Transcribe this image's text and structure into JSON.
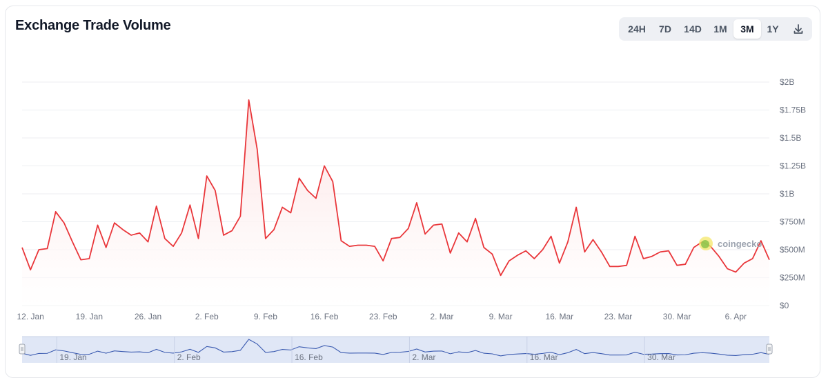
{
  "header": {
    "title": "Exchange Trade Volume"
  },
  "range_buttons": [
    {
      "label": "24H",
      "active": false
    },
    {
      "label": "7D",
      "active": false
    },
    {
      "label": "14D",
      "active": false
    },
    {
      "label": "1M",
      "active": false
    },
    {
      "label": "3M",
      "active": true
    },
    {
      "label": "1Y",
      "active": false
    }
  ],
  "download_icon": "download-icon",
  "watermark": {
    "text": "coingecko",
    "icon": "coingecko-logo-icon"
  },
  "colors": {
    "line": "#e9363a",
    "fill_top": "#fde2e2",
    "navigator_fill": "#d6dff3",
    "navigator_line": "#3b5bb0",
    "grid": "#eceef2"
  },
  "chart_data": {
    "type": "area",
    "series": [
      {
        "values": [
          0.52,
          0.32,
          0.5,
          0.51,
          0.84,
          0.74,
          0.57,
          0.41,
          0.42,
          0.72,
          0.52,
          0.74,
          0.68,
          0.63,
          0.65,
          0.57,
          0.89,
          0.6,
          0.53,
          0.65,
          0.9,
          0.6,
          1.16,
          1.03,
          0.63,
          0.67,
          0.8,
          1.84,
          1.4,
          0.6,
          0.68,
          0.88,
          0.83,
          1.14,
          1.03,
          0.96,
          1.25,
          1.11,
          0.58,
          0.53,
          0.54,
          0.54,
          0.53,
          0.4,
          0.6,
          0.61,
          0.69,
          0.92,
          0.64,
          0.72,
          0.73,
          0.47,
          0.65,
          0.57,
          0.78,
          0.52,
          0.46,
          0.27,
          0.4,
          0.45,
          0.49,
          0.42,
          0.5,
          0.62,
          0.38,
          0.57,
          0.88,
          0.48,
          0.59,
          0.48,
          0.35,
          0.35,
          0.36,
          0.62,
          0.42,
          0.44,
          0.48,
          0.49,
          0.36,
          0.37,
          0.52,
          0.57,
          0.53,
          0.44,
          0.33,
          0.3,
          0.38,
          0.42,
          0.58,
          0.41
        ]
      }
    ],
    "x_start": "2025-01-11",
    "x_ticks": [
      "12. Jan",
      "19. Jan",
      "26. Jan",
      "2. Feb",
      "9. Feb",
      "16. Feb",
      "23. Feb",
      "2. Mar",
      "9. Mar",
      "16. Mar",
      "23. Mar",
      "30. Mar",
      "6. Apr"
    ],
    "y_ticks": [
      {
        "value": 0,
        "label": "$0"
      },
      {
        "value": 0.25,
        "label": "$250M"
      },
      {
        "value": 0.5,
        "label": "$500M"
      },
      {
        "value": 0.75,
        "label": "$750M"
      },
      {
        "value": 1.0,
        "label": "$1B"
      },
      {
        "value": 1.25,
        "label": "$1.25B"
      },
      {
        "value": 1.5,
        "label": "$1.5B"
      },
      {
        "value": 1.75,
        "label": "$1.75B"
      },
      {
        "value": 2.0,
        "label": "$2B"
      }
    ],
    "ylim": [
      0,
      2.0
    ],
    "y_unit": "USD billions",
    "grid": true,
    "navigator_ticks": [
      "19. Jan",
      "2. Feb",
      "16. Feb",
      "2. Mar",
      "16. Mar",
      "30. Mar"
    ]
  }
}
